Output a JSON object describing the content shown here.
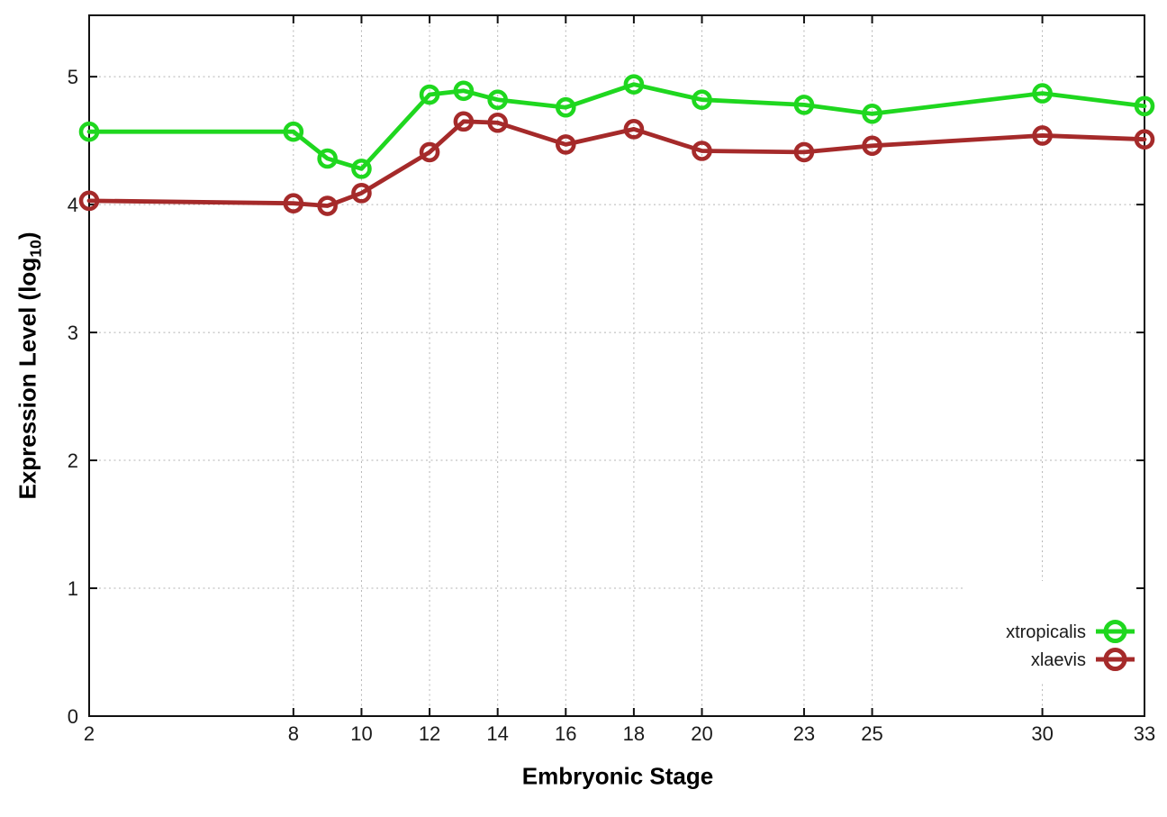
{
  "chart_data": {
    "type": "line",
    "title": "",
    "xlabel": "Embryonic Stage",
    "ylabel": "Expression Level (log10)",
    "x": [
      2,
      8,
      9,
      10,
      12,
      13,
      14,
      16,
      18,
      20,
      23,
      25,
      30,
      33
    ],
    "series": [
      {
        "name": "xtropicalis",
        "color": "#1fd71f",
        "marker": "open-circle",
        "values": [
          4.57,
          4.57,
          4.36,
          4.28,
          4.86,
          4.89,
          4.82,
          4.76,
          4.94,
          4.82,
          4.78,
          4.71,
          4.87,
          4.77
        ]
      },
      {
        "name": "xlaevis",
        "color": "#a52a2a",
        "marker": "open-circle",
        "values": [
          4.03,
          4.01,
          3.99,
          4.09,
          4.41,
          4.65,
          4.64,
          4.47,
          4.59,
          4.42,
          4.41,
          4.46,
          4.54,
          4.51
        ]
      }
    ],
    "x_ticks": [
      2,
      8,
      10,
      12,
      14,
      16,
      18,
      20,
      23,
      25,
      30,
      33
    ],
    "y_ticks": [
      0,
      1,
      2,
      3,
      4,
      5
    ],
    "xlim": [
      2,
      33
    ],
    "ylim": [
      0,
      5.48
    ],
    "grid": true,
    "legend_position": "inside-bottom-right"
  },
  "labels": {
    "x": "Embryonic Stage",
    "y_pre": "Expression Level (log",
    "y_sub": "10",
    "y_post": ")"
  },
  "colors": {
    "background": "#ffffff",
    "axis": "#111111",
    "grid": "#b5b5b5",
    "tick_text": "#1a1a1a",
    "series_xtropicalis": "#1fd71f",
    "series_xlaevis": "#a52a2a"
  }
}
